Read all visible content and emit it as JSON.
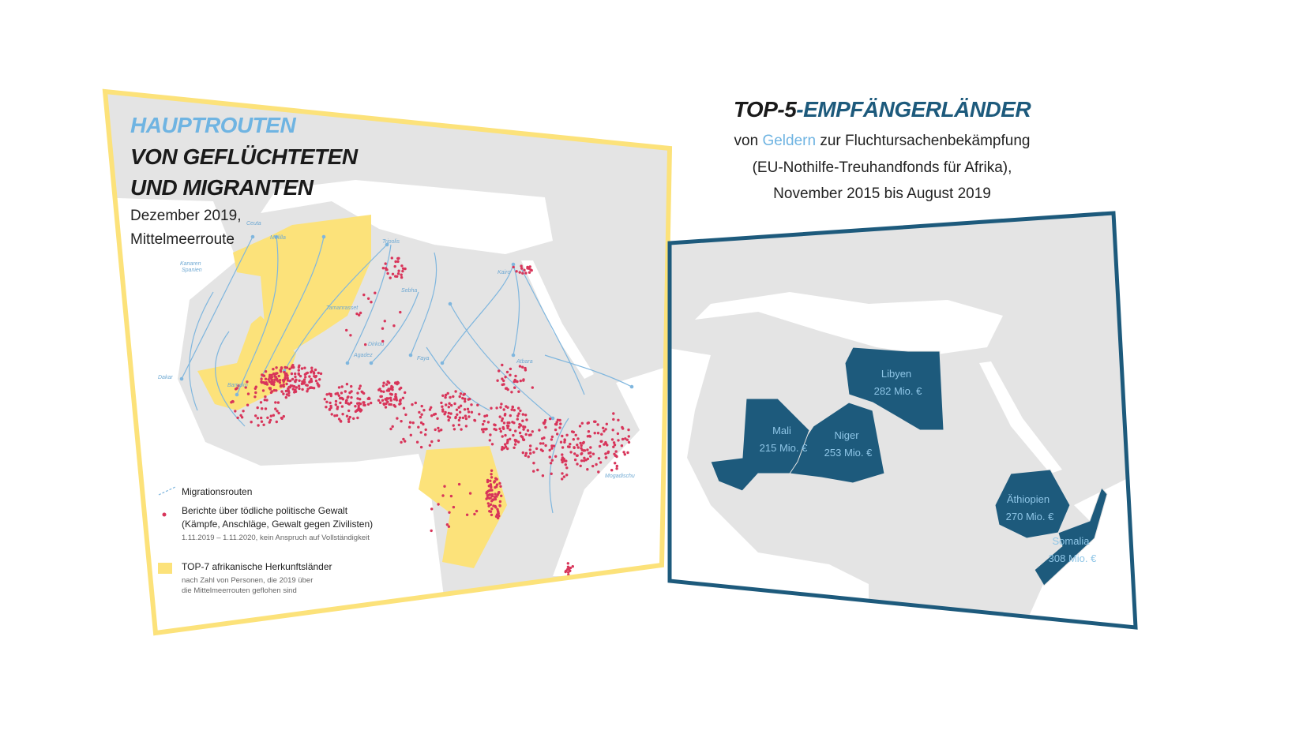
{
  "left_map": {
    "title_highlight": "HAUPTROUTEN",
    "title_line2": "VON GEFLÜCHTETEN",
    "title_line3": "UND MIGRANTEN",
    "subtitle_line1": "Dezember 2019,",
    "subtitle_line2": "Mittelmeerroute",
    "places": [
      "Ceuta",
      "Melilla",
      "Kanaren",
      "Spanien",
      "Tripolis",
      "Sebha",
      "Kairo",
      "Tamanrasset",
      "Dirkou",
      "Agadez",
      "Faya",
      "Atbara",
      "Dakar",
      "Bamako",
      "Mogadischu"
    ],
    "legend": {
      "routes": "Migrationsrouten",
      "violence_line1": "Berichte über tödliche politische Gewalt",
      "violence_line2": "(Kämpfe, Anschläge, Gewalt gegen Zivilisten)",
      "violence_note": "1.11.2019 – 1.11.2020, kein Anspruch auf Vollständigkeit",
      "countries_line1": "TOP-7 afrikanische Herkunftsländer",
      "countries_note1": "nach Zahl von Personen, die 2019 über",
      "countries_note2": "die Mittelmeerrouten geflohen sind"
    }
  },
  "right_map": {
    "title_part1": "TOP-5",
    "title_part2": "-EMPFÄNGERLÄNDER",
    "subtitle_pre": "von",
    "subtitle_highlight": "Geldern",
    "subtitle_post": "zur Fluchtursachenbekämpfung",
    "subtitle_line2": "(EU-Nothilfe-Treuhandfonds für Afrika),",
    "subtitle_line3": "November 2015 bis August 2019",
    "countries": [
      {
        "name": "Libyen",
        "amount": "282 Mio. €"
      },
      {
        "name": "Mali",
        "amount": "215 Mio. €"
      },
      {
        "name": "Niger",
        "amount": "253 Mio. €"
      },
      {
        "name": "Äthiopien",
        "amount": "270 Mio. €"
      },
      {
        "name": "Somalia",
        "amount": "308 Mio. €"
      }
    ]
  }
}
